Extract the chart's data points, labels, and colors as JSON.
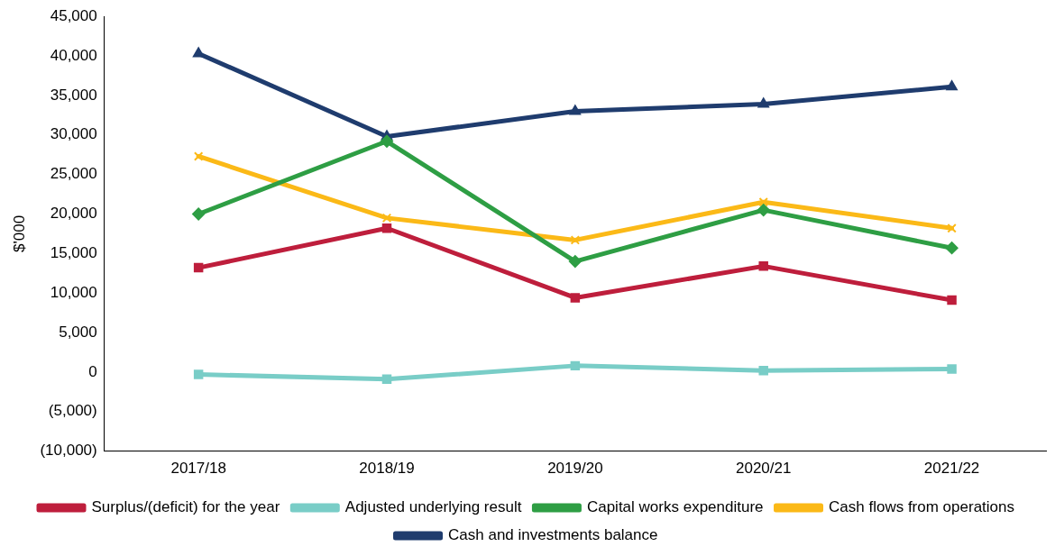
{
  "chart_data": {
    "type": "line",
    "ylabel": "$'000",
    "categories": [
      "2017/18",
      "2018/19",
      "2019/20",
      "2020/21",
      "2021/22"
    ],
    "series": [
      {
        "name": "Surplus/(deficit) for the year",
        "color": "#be1e3c",
        "marker": "square",
        "values": [
          13200,
          18200,
          9400,
          13400,
          9100
        ]
      },
      {
        "name": "Adjusted underlying result",
        "color": "#79cdc7",
        "marker": "square",
        "values": [
          -300,
          -900,
          800,
          200,
          400
        ]
      },
      {
        "name": "Capital works expenditure",
        "color": "#2e9e44",
        "marker": "diamond",
        "values": [
          20000,
          29200,
          14000,
          20500,
          15700
        ]
      },
      {
        "name": "Cash flows from operations",
        "color": "#fbb917",
        "marker": "cross",
        "values": [
          27300,
          19500,
          16700,
          21500,
          18200
        ]
      },
      {
        "name": "Cash and investments balance",
        "color": "#1f3c6e",
        "marker": "triangle",
        "values": [
          40300,
          29800,
          33000,
          33900,
          36100
        ]
      }
    ],
    "ylim": [
      -10000,
      45000
    ],
    "yticks": [
      {
        "value": -10000,
        "label": "(10,000)"
      },
      {
        "value": -5000,
        "label": "(5,000)"
      },
      {
        "value": 0,
        "label": "0"
      },
      {
        "value": 5000,
        "label": "5,000"
      },
      {
        "value": 10000,
        "label": "10,000"
      },
      {
        "value": 15000,
        "label": "15,000"
      },
      {
        "value": 20000,
        "label": "20,000"
      },
      {
        "value": 25000,
        "label": "25,000"
      },
      {
        "value": 30000,
        "label": "30,000"
      },
      {
        "value": 35000,
        "label": "35,000"
      },
      {
        "value": 40000,
        "label": "40,000"
      },
      {
        "value": 45000,
        "label": "45,000"
      }
    ],
    "grid": false,
    "legend": "bottom",
    "line_style": "solid"
  }
}
